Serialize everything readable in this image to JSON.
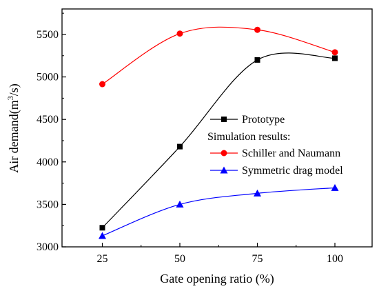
{
  "chart_data": {
    "type": "line",
    "x": [
      25,
      50,
      75,
      100
    ],
    "xlabel": "Gate opening ratio (%)",
    "ylabel_main": "Air demand(m",
    "ylabel_sup": "3",
    "ylabel_tail": "/s)",
    "xlim": [
      12,
      112
    ],
    "ylim": [
      3000,
      5800
    ],
    "xticks": [
      25,
      50,
      75,
      100
    ],
    "yticks": [
      3000,
      3500,
      4000,
      4500,
      5000,
      5500
    ],
    "legend_placement": "right",
    "legend_header": "Simulation results:",
    "grid": false,
    "series": [
      {
        "name": "Prototype",
        "values": [
          3225,
          4180,
          5200,
          5220
        ],
        "color": "#000000",
        "marker": "square"
      },
      {
        "name": "Schiller and Naumann",
        "values": [
          4915,
          5510,
          5555,
          5290
        ],
        "color": "#ff0000",
        "marker": "circle"
      },
      {
        "name": "Symmetric drag model",
        "values": [
          3130,
          3500,
          3630,
          3695
        ],
        "color": "#0000ff",
        "marker": "triangle"
      }
    ]
  }
}
